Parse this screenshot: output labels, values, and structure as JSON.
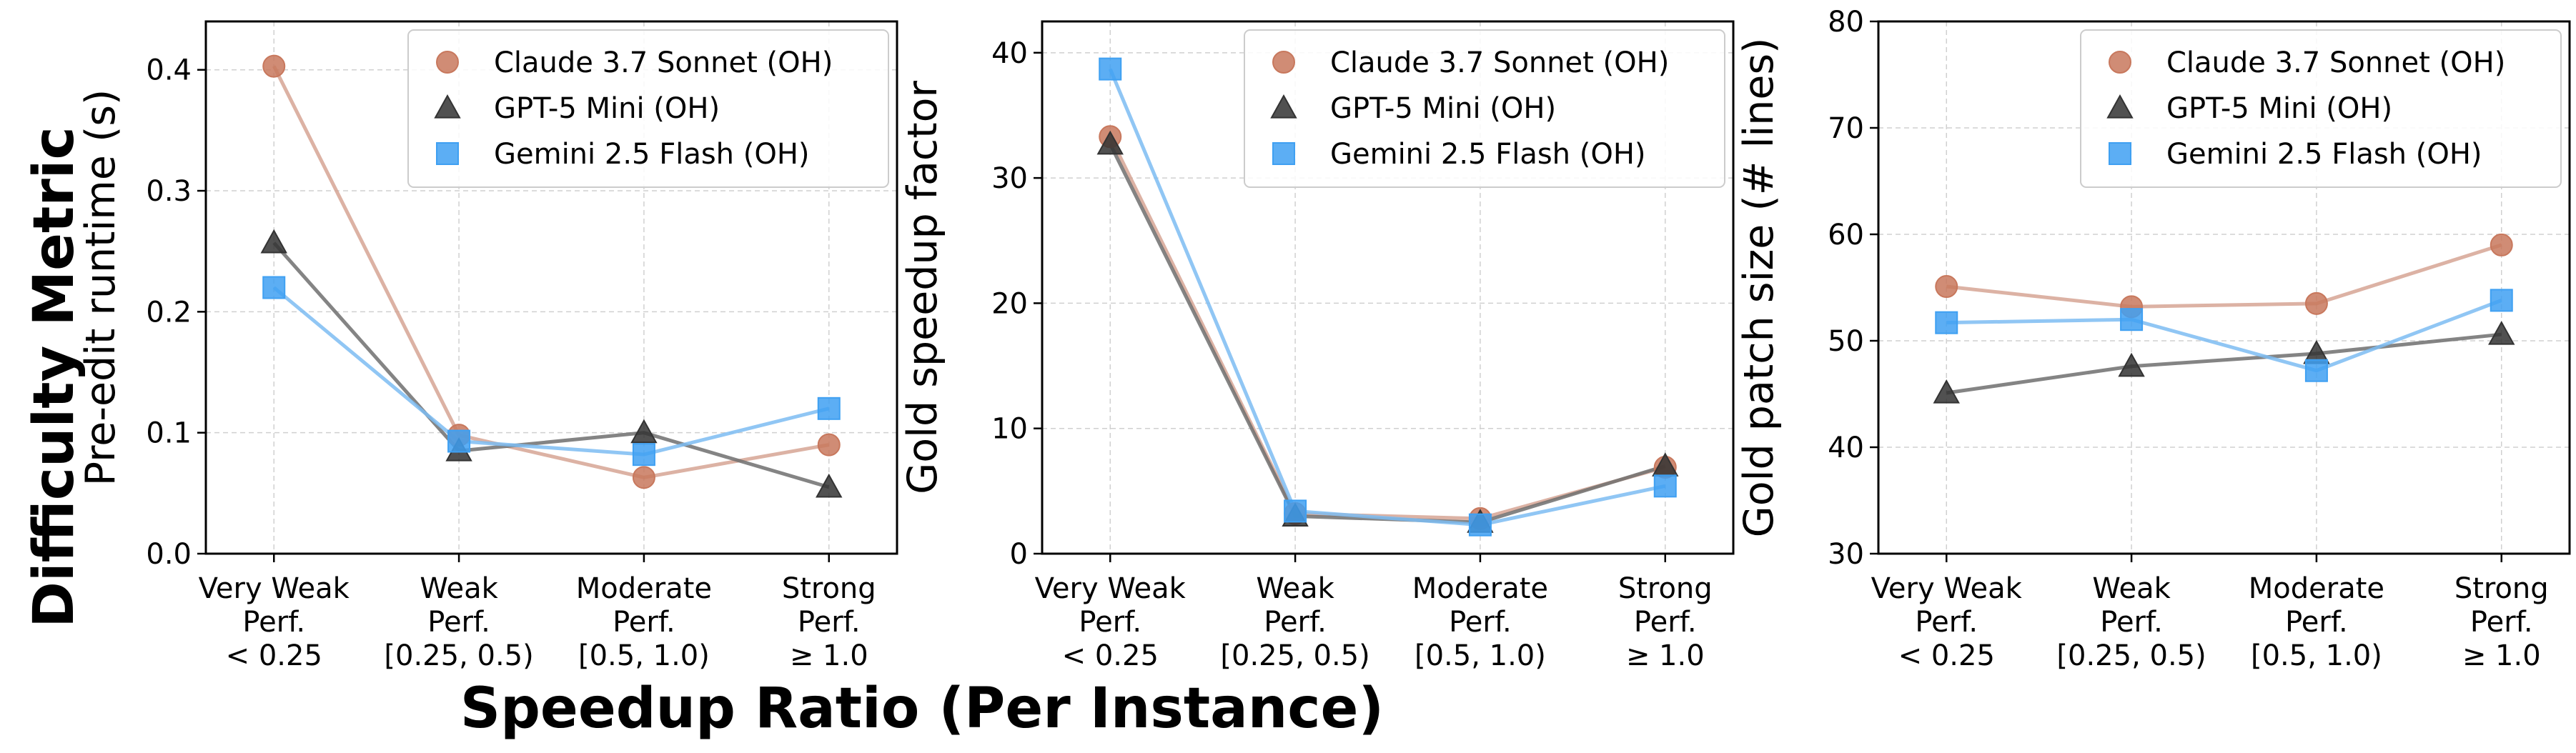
{
  "figure": {
    "ylabel_left": "Difficulty Metric",
    "xlabel_bottom": "Speedup Ratio (Per Instance)"
  },
  "legend": {
    "items": [
      "Claude 3.7 Sonnet (OH)",
      "GPT-5 Mini (OH)",
      "Gemini 2.5 Flash (OH)"
    ]
  },
  "styles": {
    "claude": {
      "marker": "circle",
      "line": "#d6a494",
      "fill": "#c8785d"
    },
    "gpt": {
      "marker": "triangle",
      "line": "#6f6f6f",
      "fill": "#333333"
    },
    "gemini": {
      "marker": "square",
      "line": "#7cbcf2",
      "fill": "#3fa0f2"
    },
    "grid": "#d0d0d0"
  },
  "chart_data": [
    {
      "type": "line",
      "ylabel": "Pre-edit runtime (s)",
      "categories": [
        [
          "Very Weak",
          "Perf.",
          "< 0.25"
        ],
        [
          "Weak",
          "Perf.",
          "[0.25, 0.5)"
        ],
        [
          "Moderate",
          "Perf.",
          "[0.5, 1.0)"
        ],
        [
          "Strong",
          "Perf.",
          "≥ 1.0"
        ]
      ],
      "ylim": [
        0,
        0.44
      ],
      "yticks": [
        0,
        0.1,
        0.2,
        0.3,
        0.4
      ],
      "ytick_labels": [
        "0.0",
        "0.1",
        "0.2",
        "0.3",
        "0.4"
      ],
      "grid": true,
      "legend_position": "top-right",
      "series": [
        {
          "name": "Claude 3.7 Sonnet (OH)",
          "values": [
            0.403,
            0.098,
            0.063,
            0.09
          ]
        },
        {
          "name": "GPT-5 Mini (OH)",
          "values": [
            0.257,
            0.085,
            0.1,
            0.055
          ]
        },
        {
          "name": "Gemini 2.5 Flash (OH)",
          "values": [
            0.22,
            0.093,
            0.082,
            0.12
          ]
        }
      ]
    },
    {
      "type": "line",
      "ylabel": "Gold speedup factor",
      "categories": [
        [
          "Very Weak",
          "Perf.",
          "< 0.25"
        ],
        [
          "Weak",
          "Perf.",
          "[0.25, 0.5)"
        ],
        [
          "Moderate",
          "Perf.",
          "[0.5, 1.0)"
        ],
        [
          "Strong",
          "Perf.",
          "≥ 1.0"
        ]
      ],
      "ylim": [
        0,
        42.5
      ],
      "yticks": [
        0,
        10,
        20,
        30,
        40
      ],
      "ytick_labels": [
        "0",
        "10",
        "20",
        "30",
        "40"
      ],
      "grid": true,
      "legend_position": "top-right",
      "series": [
        {
          "name": "Claude 3.7 Sonnet (OH)",
          "values": [
            33.3,
            3.2,
            2.8,
            6.9
          ]
        },
        {
          "name": "GPT-5 Mini (OH)",
          "values": [
            32.7,
            3.0,
            2.5,
            7.0
          ]
        },
        {
          "name": "Gemini 2.5 Flash (OH)",
          "values": [
            38.7,
            3.4,
            2.3,
            5.4
          ]
        }
      ]
    },
    {
      "type": "line",
      "ylabel": "Gold patch size (# lines)",
      "categories": [
        [
          "Very Weak",
          "Perf.",
          "< 0.25"
        ],
        [
          "Weak",
          "Perf.",
          "[0.25, 0.5)"
        ],
        [
          "Moderate",
          "Perf.",
          "[0.5, 1.0)"
        ],
        [
          "Strong",
          "Perf.",
          "≥ 1.0"
        ]
      ],
      "ylim": [
        30,
        80
      ],
      "yticks": [
        30,
        40,
        50,
        60,
        70,
        80
      ],
      "ytick_labels": [
        "30",
        "40",
        "50",
        "60",
        "70",
        "80"
      ],
      "grid": true,
      "legend_position": "top-right",
      "series": [
        {
          "name": "Claude 3.7 Sonnet (OH)",
          "values": [
            55.1,
            53.2,
            53.5,
            59.0
          ]
        },
        {
          "name": "GPT-5 Mini (OH)",
          "values": [
            45.1,
            47.6,
            48.8,
            50.6
          ]
        },
        {
          "name": "Gemini 2.5 Flash (OH)",
          "values": [
            51.7,
            52.0,
            47.2,
            53.8
          ]
        }
      ]
    }
  ]
}
